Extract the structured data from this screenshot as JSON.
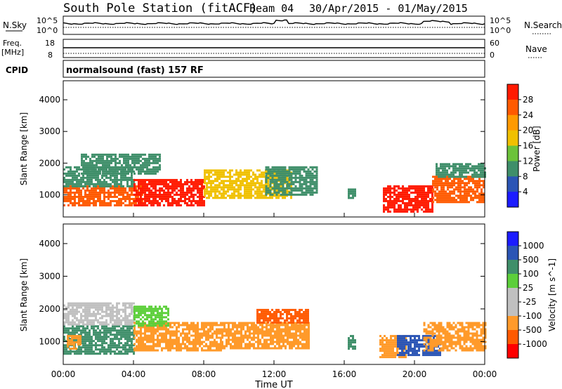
{
  "header": {
    "title": "South Pole Station (fitACF)",
    "beam": "Beam 04",
    "date_range": "30/Apr/2015 - 01/May/2015"
  },
  "top_panel": {
    "left_label": "N.Sky",
    "left_ticks": [
      "10^5",
      "10^0"
    ],
    "right_ticks": [
      "10^5",
      "10^0"
    ],
    "right_label": "N.Search"
  },
  "freq_panel": {
    "left_label_1": "Freq.",
    "left_label_2": "[MHz]",
    "left_ticks": [
      "18",
      "8"
    ],
    "right_ticks": [
      "60",
      "0"
    ],
    "right_label": "Nave"
  },
  "cpid": {
    "label": "CPID",
    "value": "normalsound (fast) 157 RF"
  },
  "colors": {
    "power": [
      "#1c1cff",
      "#2b55b5",
      "#3f8f6a",
      "#6cc23a",
      "#f0c000",
      "#ff9a00",
      "#ff5a00",
      "#ff1a00"
    ],
    "velocity": [
      "#ff0000",
      "#ff5a00",
      "#ff9a2a",
      "#c0c0c0",
      "#c0c0c0",
      "#5ccf3a",
      "#3f8f6a",
      "#2b55b5",
      "#1c1cff"
    ]
  },
  "chart_data": [
    {
      "type": "heatmap",
      "title": "",
      "xlabel": "",
      "ylabel": "Slant Range [km]",
      "x_ticks": [
        "00:00",
        "04:00",
        "08:00",
        "12:00",
        "16:00",
        "20:00",
        "00:00"
      ],
      "xlim_hours": [
        0,
        24
      ],
      "ylim": [
        300,
        4600
      ],
      "y_ticks": [
        1000,
        2000,
        3000,
        4000
      ],
      "colorbar": {
        "label": "Power [dB]",
        "ticks": [
          "28",
          "24",
          "20",
          "16",
          "12",
          "8",
          "4"
        ],
        "range": [
          0,
          30
        ]
      },
      "regions": [
        {
          "x0": 0.0,
          "x1": 4.5,
          "y0": 700,
          "y1": 1300,
          "level": 26
        },
        {
          "x0": 0.0,
          "x1": 4.0,
          "y0": 1300,
          "y1": 1900,
          "level": 10
        },
        {
          "x0": 1.0,
          "x1": 5.5,
          "y0": 1700,
          "y1": 2300,
          "level": 8
        },
        {
          "x0": 4.0,
          "x1": 8.0,
          "y0": 700,
          "y1": 1500,
          "level": 27
        },
        {
          "x0": 8.0,
          "x1": 13.0,
          "y0": 900,
          "y1": 1800,
          "level": 18
        },
        {
          "x0": 11.5,
          "x1": 14.5,
          "y0": 1000,
          "y1": 1900,
          "level": 9
        },
        {
          "x0": 16.2,
          "x1": 16.6,
          "y0": 900,
          "y1": 1200,
          "level": 8
        },
        {
          "x0": 18.2,
          "x1": 21.0,
          "y0": 500,
          "y1": 1300,
          "level": 28
        },
        {
          "x0": 21.0,
          "x1": 24.0,
          "y0": 800,
          "y1": 1600,
          "level": 24
        },
        {
          "x0": 21.2,
          "x1": 24.0,
          "y0": 1600,
          "y1": 2000,
          "level": 8
        }
      ]
    },
    {
      "type": "heatmap",
      "title": "",
      "xlabel": "Time UT",
      "ylabel": "Slant Range [km]",
      "x_ticks": [
        "00:00",
        "04:00",
        "08:00",
        "12:00",
        "16:00",
        "20:00",
        "00:00"
      ],
      "xlim_hours": [
        0,
        24
      ],
      "ylim": [
        300,
        4600
      ],
      "y_ticks": [
        1000,
        2000,
        3000,
        4000
      ],
      "colorbar": {
        "label": "Velocity [m s^-1]",
        "ticks": [
          "1000",
          "500",
          "100",
          "25",
          "-25",
          "-100",
          "-500",
          "-1000"
        ]
      },
      "regions": [
        {
          "x0": 0.0,
          "x1": 4.0,
          "y0": 600,
          "y1": 1500,
          "level": 6
        },
        {
          "x0": 0.0,
          "x1": 4.0,
          "y0": 1500,
          "y1": 2200,
          "level": 4
        },
        {
          "x0": 0.2,
          "x1": 1.0,
          "y0": 800,
          "y1": 1200,
          "level": 2
        },
        {
          "x0": 4.0,
          "x1": 9.0,
          "y0": 700,
          "y1": 1600,
          "level": 2
        },
        {
          "x0": 4.0,
          "x1": 6.0,
          "y0": 1500,
          "y1": 2100,
          "level": 5
        },
        {
          "x0": 9.0,
          "x1": 14.0,
          "y0": 800,
          "y1": 1600,
          "level": 2
        },
        {
          "x0": 11.0,
          "x1": 14.0,
          "y0": 1600,
          "y1": 2000,
          "level": 1
        },
        {
          "x0": 16.2,
          "x1": 16.6,
          "y0": 800,
          "y1": 1200,
          "level": 6
        },
        {
          "x0": 18.0,
          "x1": 19.5,
          "y0": 500,
          "y1": 1200,
          "level": 2
        },
        {
          "x0": 19.0,
          "x1": 21.5,
          "y0": 600,
          "y1": 1200,
          "level": 7
        },
        {
          "x0": 20.5,
          "x1": 24.0,
          "y0": 700,
          "y1": 1600,
          "level": 2
        }
      ]
    }
  ]
}
